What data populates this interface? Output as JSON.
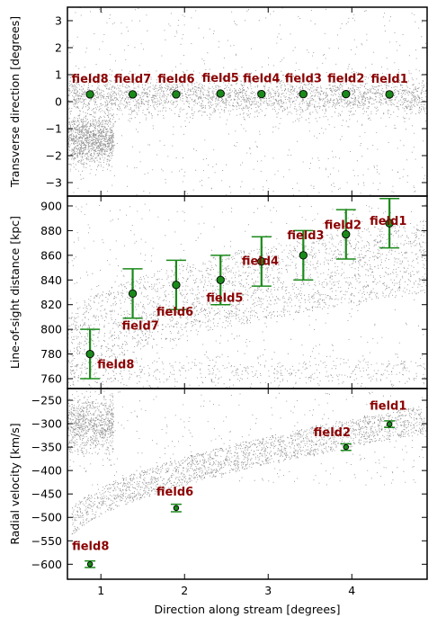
{
  "colors": {
    "scatter": "#8c8c8c",
    "marker_fill": "#1a8a1a",
    "errorbar": "#1a8a1a",
    "label": "#8b0000",
    "frame": "#000000"
  },
  "chart_data": [
    {
      "id": "top",
      "type": "scatter",
      "ylabel": "Transverse direction [degrees]",
      "xlim": [
        0.6,
        4.9
      ],
      "ylim": [
        -3.5,
        3.5
      ],
      "yticks": [
        -3,
        -2,
        -1,
        0,
        1,
        2,
        3
      ],
      "ytick_labels": [
        "−3",
        "−2",
        "−1",
        "0",
        "1",
        "2",
        "3"
      ],
      "grid": false,
      "background": "dense grey point cloud (simulated stream stars)",
      "fields": [
        {
          "name": "field8",
          "x": 0.87,
          "y": 0.27
        },
        {
          "name": "field7",
          "x": 1.38,
          "y": 0.27
        },
        {
          "name": "field6",
          "x": 1.9,
          "y": 0.27
        },
        {
          "name": "field5",
          "x": 2.43,
          "y": 0.3
        },
        {
          "name": "field4",
          "x": 2.92,
          "y": 0.28
        },
        {
          "name": "field3",
          "x": 3.42,
          "y": 0.28
        },
        {
          "name": "field2",
          "x": 3.93,
          "y": 0.28
        },
        {
          "name": "field1",
          "x": 4.45,
          "y": 0.27
        }
      ]
    },
    {
      "id": "middle",
      "type": "scatter",
      "ylabel": "Line-of-sight distance [kpc]",
      "xlim": [
        0.6,
        4.9
      ],
      "ylim": [
        752,
        908
      ],
      "yticks": [
        760,
        780,
        800,
        820,
        840,
        860,
        880,
        900
      ],
      "ytick_labels": [
        "760",
        "780",
        "800",
        "820",
        "840",
        "860",
        "880",
        "900"
      ],
      "grid": false,
      "fields": [
        {
          "name": "field8",
          "x": 0.87,
          "y": 780,
          "err": 20
        },
        {
          "name": "field7",
          "x": 1.38,
          "y": 829,
          "err": 20
        },
        {
          "name": "field6",
          "x": 1.9,
          "y": 836,
          "err": 20
        },
        {
          "name": "field5",
          "x": 2.43,
          "y": 840,
          "err": 20
        },
        {
          "name": "field4",
          "x": 2.92,
          "y": 855,
          "err": 20
        },
        {
          "name": "field3",
          "x": 3.42,
          "y": 860,
          "err": 20
        },
        {
          "name": "field2",
          "x": 3.93,
          "y": 877,
          "err": 20
        },
        {
          "name": "field1",
          "x": 4.45,
          "y": 886,
          "err": 20
        }
      ]
    },
    {
      "id": "bottom",
      "type": "scatter",
      "ylabel": "Radial velocity [km/s]",
      "xlabel": "Direction along stream [degrees]",
      "xlim": [
        0.6,
        4.9
      ],
      "ylim": [
        -632,
        -225
      ],
      "xticks": [
        1,
        2,
        3,
        4
      ],
      "xtick_labels": [
        "1",
        "2",
        "3",
        "4"
      ],
      "yticks": [
        -600,
        -550,
        -500,
        -450,
        -400,
        -350,
        -300,
        -250
      ],
      "ytick_labels": [
        "−600",
        "−550",
        "−500",
        "−450",
        "−400",
        "−350",
        "−300",
        "−250"
      ],
      "grid": false,
      "fields": [
        {
          "name": "field8",
          "x": 0.87,
          "y": -600,
          "err": 7
        },
        {
          "name": "field6",
          "x": 1.9,
          "y": -480,
          "err": 8
        },
        {
          "name": "field2",
          "x": 3.93,
          "y": -350,
          "err": 7
        },
        {
          "name": "field1",
          "x": 4.45,
          "y": -301,
          "err": 7
        }
      ]
    }
  ]
}
